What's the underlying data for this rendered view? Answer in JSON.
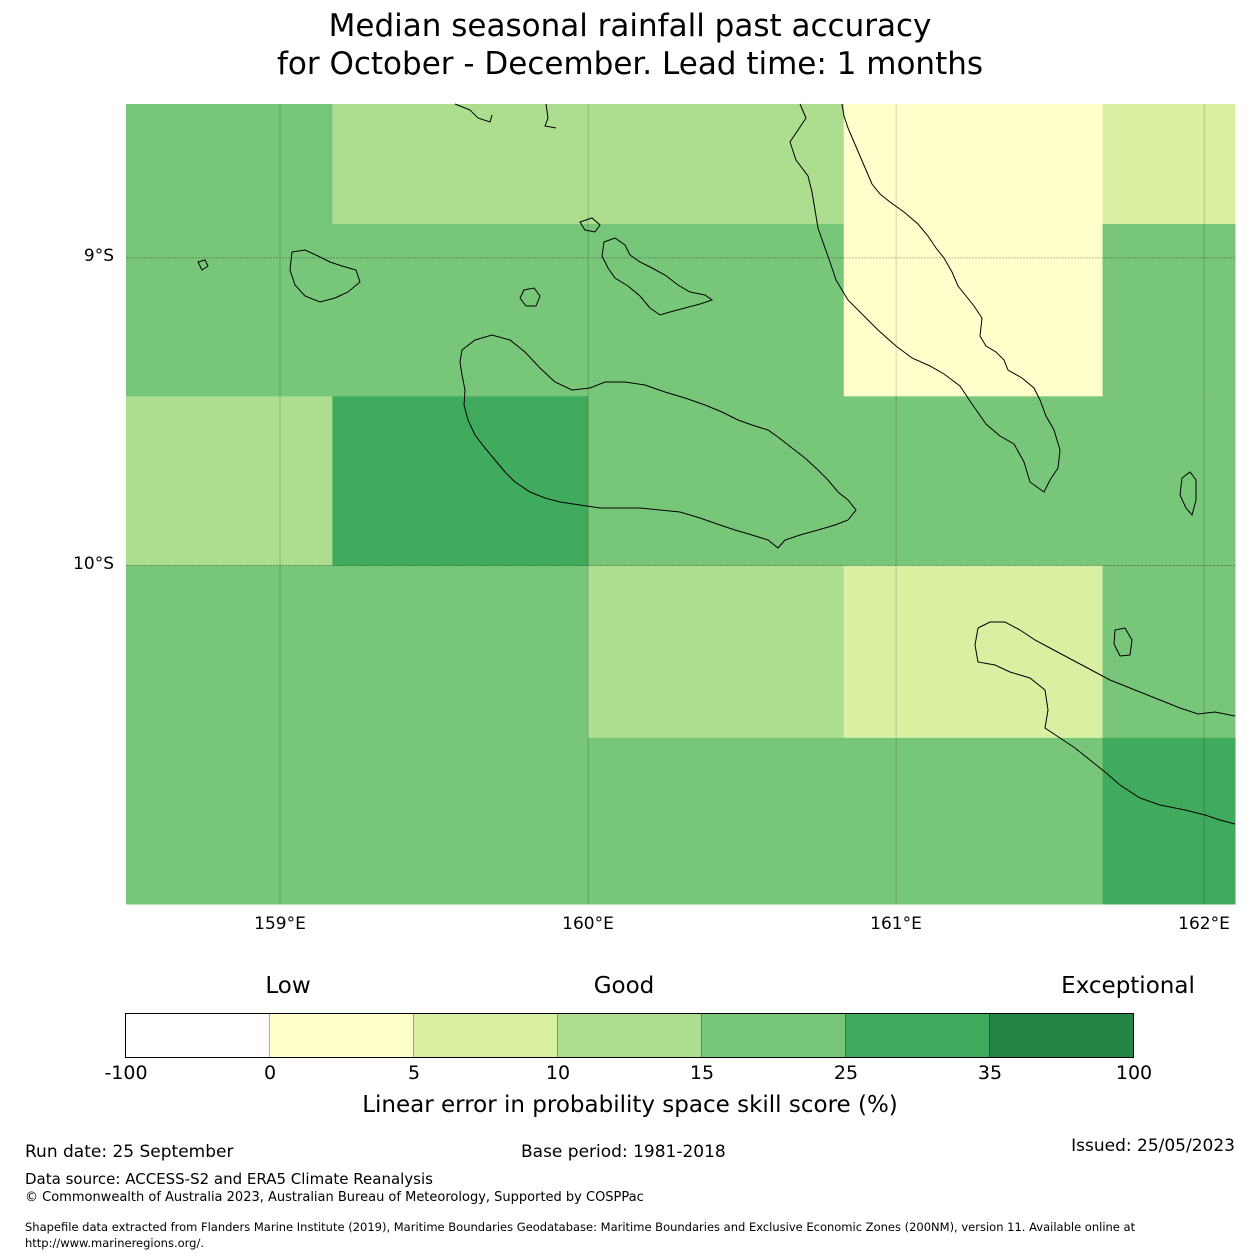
{
  "title": {
    "line1": "Median seasonal rainfall past accuracy",
    "line2": "for October - December. Lead time: 1 months"
  },
  "map": {
    "lon_labels": [
      "159°E",
      "160°E",
      "161°E",
      "162°E"
    ],
    "lat_labels": [
      "9°S",
      "10°S"
    ],
    "lon_values": [
      159,
      160,
      161,
      162
    ],
    "lat_values": [
      -9,
      -10
    ],
    "lon_range": [
      158.5,
      162.1
    ],
    "lat_range": [
      -11.1,
      -8.5
    ],
    "grid_cells": [
      {
        "lon0": 158.5,
        "lon1": 159.17,
        "lat0": -8.5,
        "lat1": -8.89,
        "category": "15-25"
      },
      {
        "lon0": 159.17,
        "lon1": 160.83,
        "lat0": -8.5,
        "lat1": -8.89,
        "category": "10-15"
      },
      {
        "lon0": 160.83,
        "lon1": 161.67,
        "lat0": -8.5,
        "lat1": -8.89,
        "category": "0-5"
      },
      {
        "lon0": 161.67,
        "lon1": 162.1,
        "lat0": -8.5,
        "lat1": -8.89,
        "category": "5-10"
      },
      {
        "lon0": 158.5,
        "lon1": 160.83,
        "lat0": -8.89,
        "lat1": -9.45,
        "category": "15-25"
      },
      {
        "lon0": 160.83,
        "lon1": 161.67,
        "lat0": -8.89,
        "lat1": -9.45,
        "category": "0-5"
      },
      {
        "lon0": 161.67,
        "lon1": 162.1,
        "lat0": -8.89,
        "lat1": -9.45,
        "category": "15-25"
      },
      {
        "lon0": 158.5,
        "lon1": 159.17,
        "lat0": -9.45,
        "lat1": -10.0,
        "category": "10-15"
      },
      {
        "lon0": 159.17,
        "lon1": 160.0,
        "lat0": -9.45,
        "lat1": -10.0,
        "category": "25-35"
      },
      {
        "lon0": 160.0,
        "lon1": 162.1,
        "lat0": -9.45,
        "lat1": -10.0,
        "category": "15-25"
      },
      {
        "lon0": 158.5,
        "lon1": 160.0,
        "lat0": -10.0,
        "lat1": -11.1,
        "category": "15-25"
      },
      {
        "lon0": 160.0,
        "lon1": 160.83,
        "lat0": -10.0,
        "lat1": -10.56,
        "category": "10-15"
      },
      {
        "lon0": 160.83,
        "lon1": 161.67,
        "lat0": -10.0,
        "lat1": -10.56,
        "category": "5-10"
      },
      {
        "lon0": 161.67,
        "lon1": 162.1,
        "lat0": -10.0,
        "lat1": -10.56,
        "category": "15-25"
      },
      {
        "lon0": 160.0,
        "lon1": 161.67,
        "lat0": -10.56,
        "lat1": -11.1,
        "category": "15-25"
      },
      {
        "lon0": 161.67,
        "lon1": 162.1,
        "lat0": -10.56,
        "lat1": -11.1,
        "category": "25-35"
      }
    ]
  },
  "colorbar": {
    "words": {
      "low": "Low",
      "good": "Good",
      "exceptional": "Exceptional"
    },
    "bins": [
      {
        "from": "-100",
        "to": "0",
        "color": "#ffffff"
      },
      {
        "from": "0",
        "to": "5",
        "color": "#ffffcc"
      },
      {
        "from": "5",
        "to": "10",
        "color": "#d9f0a3"
      },
      {
        "from": "10",
        "to": "15",
        "color": "#addd8e"
      },
      {
        "from": "15",
        "to": "25",
        "color": "#78c679"
      },
      {
        "from": "25",
        "to": "35",
        "color": "#41ab5d"
      },
      {
        "from": "35",
        "to": "100",
        "color": "#238443"
      }
    ],
    "ticks": [
      "-100",
      "0",
      "5",
      "10",
      "15",
      "25",
      "35",
      "100"
    ],
    "title": "Linear error in probability space skill score (%)"
  },
  "footer": {
    "run_date": "Run date: 25 September",
    "base_period": "Base period: 1981-2018",
    "issued": "Issued: 25/05/2023",
    "data_source": "Data source: ACCESS-S2 and ERA5 Climate Reanalysis",
    "copyright": "© Commonwealth of Australia 2023, Australian Bureau of Meteorology, Supported by COSPPac",
    "shapefile_line1": "Shapefile data extracted from Flanders Marine Institute (2019), Maritime Boundaries Geodatabase: Maritime Boundaries and Exclusive Economic Zones (200NM), version 11. Available online at",
    "shapefile_line2": "http://www.marineregions.org/."
  }
}
